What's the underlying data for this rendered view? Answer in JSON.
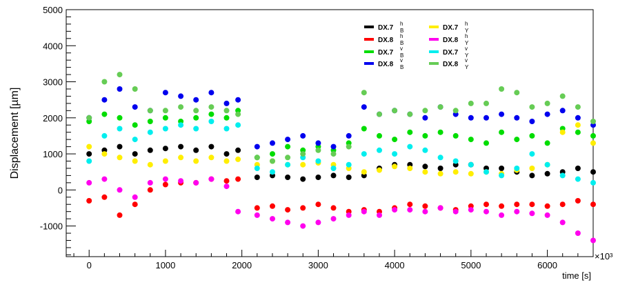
{
  "chart_data": {
    "type": "scatter",
    "title": "",
    "xlabel": "time [s]",
    "ylabel": "Displacement [µm]",
    "x_exponent_label": "×10³",
    "xlim": [
      -300,
      6600
    ],
    "ylim": [
      -1850,
      5000
    ],
    "x_ticks": [
      0,
      1000,
      2000,
      3000,
      4000,
      5000,
      6000
    ],
    "x_tick_labels": [
      "0",
      "1000",
      "2000",
      "3000",
      "4000",
      "5000",
      "6000"
    ],
    "y_ticks": [
      -1000,
      0,
      1000,
      2000,
      3000,
      4000,
      5000
    ],
    "y_tick_labels": [
      "-1000",
      "0",
      "1000",
      "2000",
      "3000",
      "4000",
      "5000"
    ],
    "grid": false,
    "legend_position": "top-right",
    "series": [
      {
        "name": "DX.7",
        "sup": "h",
        "sub": "B",
        "color": "#000000",
        "x": [
          0,
          200,
          400,
          600,
          800,
          1000,
          1200,
          1400,
          1600,
          1800,
          1950,
          2200,
          2400,
          2600,
          2800,
          3000,
          3200,
          3400,
          3600,
          3800,
          4000,
          4200,
          4400,
          4600,
          4800,
          5000,
          5200,
          5400,
          5600,
          5800,
          6000,
          6200,
          6400,
          6600
        ],
        "y": [
          1000,
          1100,
          1200,
          1000,
          1100,
          1150,
          1200,
          1100,
          1200,
          1000,
          1100,
          350,
          400,
          350,
          300,
          350,
          400,
          350,
          400,
          600,
          700,
          700,
          650,
          600,
          700,
          700,
          600,
          600,
          500,
          400,
          450,
          500,
          600,
          500
        ]
      },
      {
        "name": "DX.8",
        "sup": "h",
        "sub": "B",
        "color": "#ff0000",
        "x": [
          0,
          200,
          400,
          600,
          800,
          1000,
          1200,
          1400,
          1600,
          1800,
          1950,
          2200,
          2400,
          2600,
          2800,
          3000,
          3200,
          3400,
          3600,
          3800,
          4000,
          4200,
          4400,
          4600,
          4800,
          5000,
          5200,
          5400,
          5600,
          5800,
          6000,
          6200,
          6400,
          6600
        ],
        "y": [
          -300,
          -200,
          -700,
          -400,
          0,
          150,
          200,
          200,
          300,
          250,
          300,
          -500,
          -450,
          -550,
          -500,
          -400,
          -500,
          -600,
          -550,
          -600,
          -500,
          -400,
          -450,
          -500,
          -550,
          -450,
          -400,
          -450,
          -400,
          -400,
          -450,
          -400,
          -300,
          -400
        ]
      },
      {
        "name": "DX.7",
        "sup": "v",
        "sub": "B",
        "color": "#00dd00",
        "x": [
          0,
          200,
          400,
          600,
          800,
          1000,
          1200,
          1400,
          1600,
          1800,
          1950,
          2200,
          2400,
          2600,
          2800,
          3000,
          3200,
          3400,
          3600,
          3800,
          4000,
          4200,
          4400,
          4600,
          4800,
          5000,
          5200,
          5400,
          5600,
          5800,
          6000,
          6200,
          6400,
          6600
        ],
        "y": [
          1900,
          2100,
          2000,
          1800,
          1900,
          2000,
          1900,
          2000,
          2100,
          2000,
          2200,
          900,
          1000,
          1200,
          1100,
          1200,
          1100,
          1300,
          1700,
          1500,
          1400,
          1600,
          1500,
          1600,
          1500,
          1400,
          1300,
          1600,
          1400,
          1500,
          1300,
          1700,
          1600,
          1500
        ]
      },
      {
        "name": "DX.8",
        "sup": "v",
        "sub": "B",
        "color": "#0000ee",
        "x": [
          0,
          200,
          400,
          600,
          800,
          1000,
          1200,
          1400,
          1600,
          1800,
          1950,
          2200,
          2400,
          2600,
          2800,
          3000,
          3200,
          3400,
          3600,
          3800,
          4000,
          4200,
          4400,
          4600,
          4800,
          5000,
          5200,
          5400,
          5600,
          5800,
          6000,
          6200,
          6400,
          6600
        ],
        "y": [
          2000,
          2500,
          2800,
          2300,
          2200,
          2700,
          2600,
          2500,
          2700,
          2400,
          2500,
          1200,
          1300,
          1400,
          1500,
          1300,
          1200,
          1500,
          2300,
          2100,
          2200,
          2100,
          2000,
          2300,
          2100,
          2000,
          2000,
          2100,
          2000,
          1900,
          2100,
          2200,
          2000,
          1800
        ]
      },
      {
        "name": "DX.7",
        "sup": "h",
        "sub": "Y",
        "color": "#ffee00",
        "x": [
          0,
          200,
          400,
          600,
          800,
          1000,
          1200,
          1400,
          1600,
          1800,
          1950,
          2200,
          2400,
          2600,
          2800,
          3000,
          3200,
          3400,
          3600,
          3800,
          4000,
          4200,
          4400,
          4600,
          4800,
          5000,
          5200,
          5400,
          5600,
          5800,
          6000,
          6200,
          6400,
          6600
        ],
        "y": [
          1200,
          1000,
          900,
          800,
          700,
          800,
          900,
          800,
          900,
          800,
          850,
          700,
          800,
          700,
          700,
          750,
          700,
          600,
          500,
          550,
          650,
          600,
          500,
          450,
          500,
          450,
          500,
          450,
          550,
          600,
          700,
          1600,
          1800,
          1300
        ]
      },
      {
        "name": "DX.8",
        "sup": "h",
        "sub": "Y",
        "color": "#ff00ee",
        "x": [
          0,
          200,
          400,
          600,
          800,
          1000,
          1200,
          1400,
          1600,
          1800,
          1950,
          2200,
          2400,
          2600,
          2800,
          3000,
          3200,
          3400,
          3600,
          3800,
          4000,
          4200,
          4400,
          4600,
          4800,
          5000,
          5200,
          5400,
          5600,
          5800,
          6000,
          6200,
          6400,
          6600
        ],
        "y": [
          200,
          300,
          0,
          -200,
          200,
          300,
          250,
          200,
          300,
          100,
          -600,
          -700,
          -800,
          -900,
          -1000,
          -900,
          -800,
          -700,
          -600,
          -700,
          -550,
          -550,
          -600,
          -500,
          -600,
          -550,
          -600,
          -700,
          -600,
          -650,
          -700,
          -900,
          -1200,
          -1400
        ]
      },
      {
        "name": "DX.7",
        "sup": "v",
        "sub": "Y",
        "color": "#00eeee",
        "x": [
          0,
          200,
          400,
          600,
          800,
          1000,
          1200,
          1400,
          1600,
          1800,
          1950,
          2200,
          2400,
          2600,
          2800,
          3000,
          3200,
          3400,
          3600,
          3800,
          4000,
          4200,
          4400,
          4600,
          4800,
          5000,
          5200,
          5400,
          5600,
          5800,
          6000,
          6200,
          6400,
          6600
        ],
        "y": [
          800,
          1500,
          1700,
          1400,
          1600,
          1700,
          1800,
          1700,
          1900,
          1700,
          1800,
          600,
          500,
          700,
          900,
          800,
          600,
          700,
          1000,
          1100,
          1000,
          1200,
          1100,
          900,
          800,
          700,
          500,
          400,
          600,
          1000,
          700,
          400,
          300,
          200
        ]
      },
      {
        "name": "DX.8",
        "sup": "v",
        "sub": "Y",
        "color": "#66cc55",
        "x": [
          0,
          200,
          400,
          600,
          800,
          1000,
          1200,
          1400,
          1600,
          1800,
          1950,
          2200,
          2400,
          2600,
          2800,
          3000,
          3200,
          3400,
          3600,
          3800,
          4000,
          4200,
          4400,
          4600,
          4800,
          5000,
          5200,
          5400,
          5600,
          5800,
          6000,
          6200,
          6400,
          6600
        ],
        "y": [
          2000,
          3000,
          3200,
          2800,
          2200,
          2200,
          2300,
          2200,
          2300,
          2200,
          2100,
          900,
          800,
          900,
          1000,
          1100,
          1000,
          1200,
          2700,
          2100,
          2200,
          2100,
          2200,
          2300,
          2200,
          2400,
          2400,
          2800,
          2700,
          2300,
          2400,
          2600,
          2300,
          1900
        ]
      }
    ]
  }
}
